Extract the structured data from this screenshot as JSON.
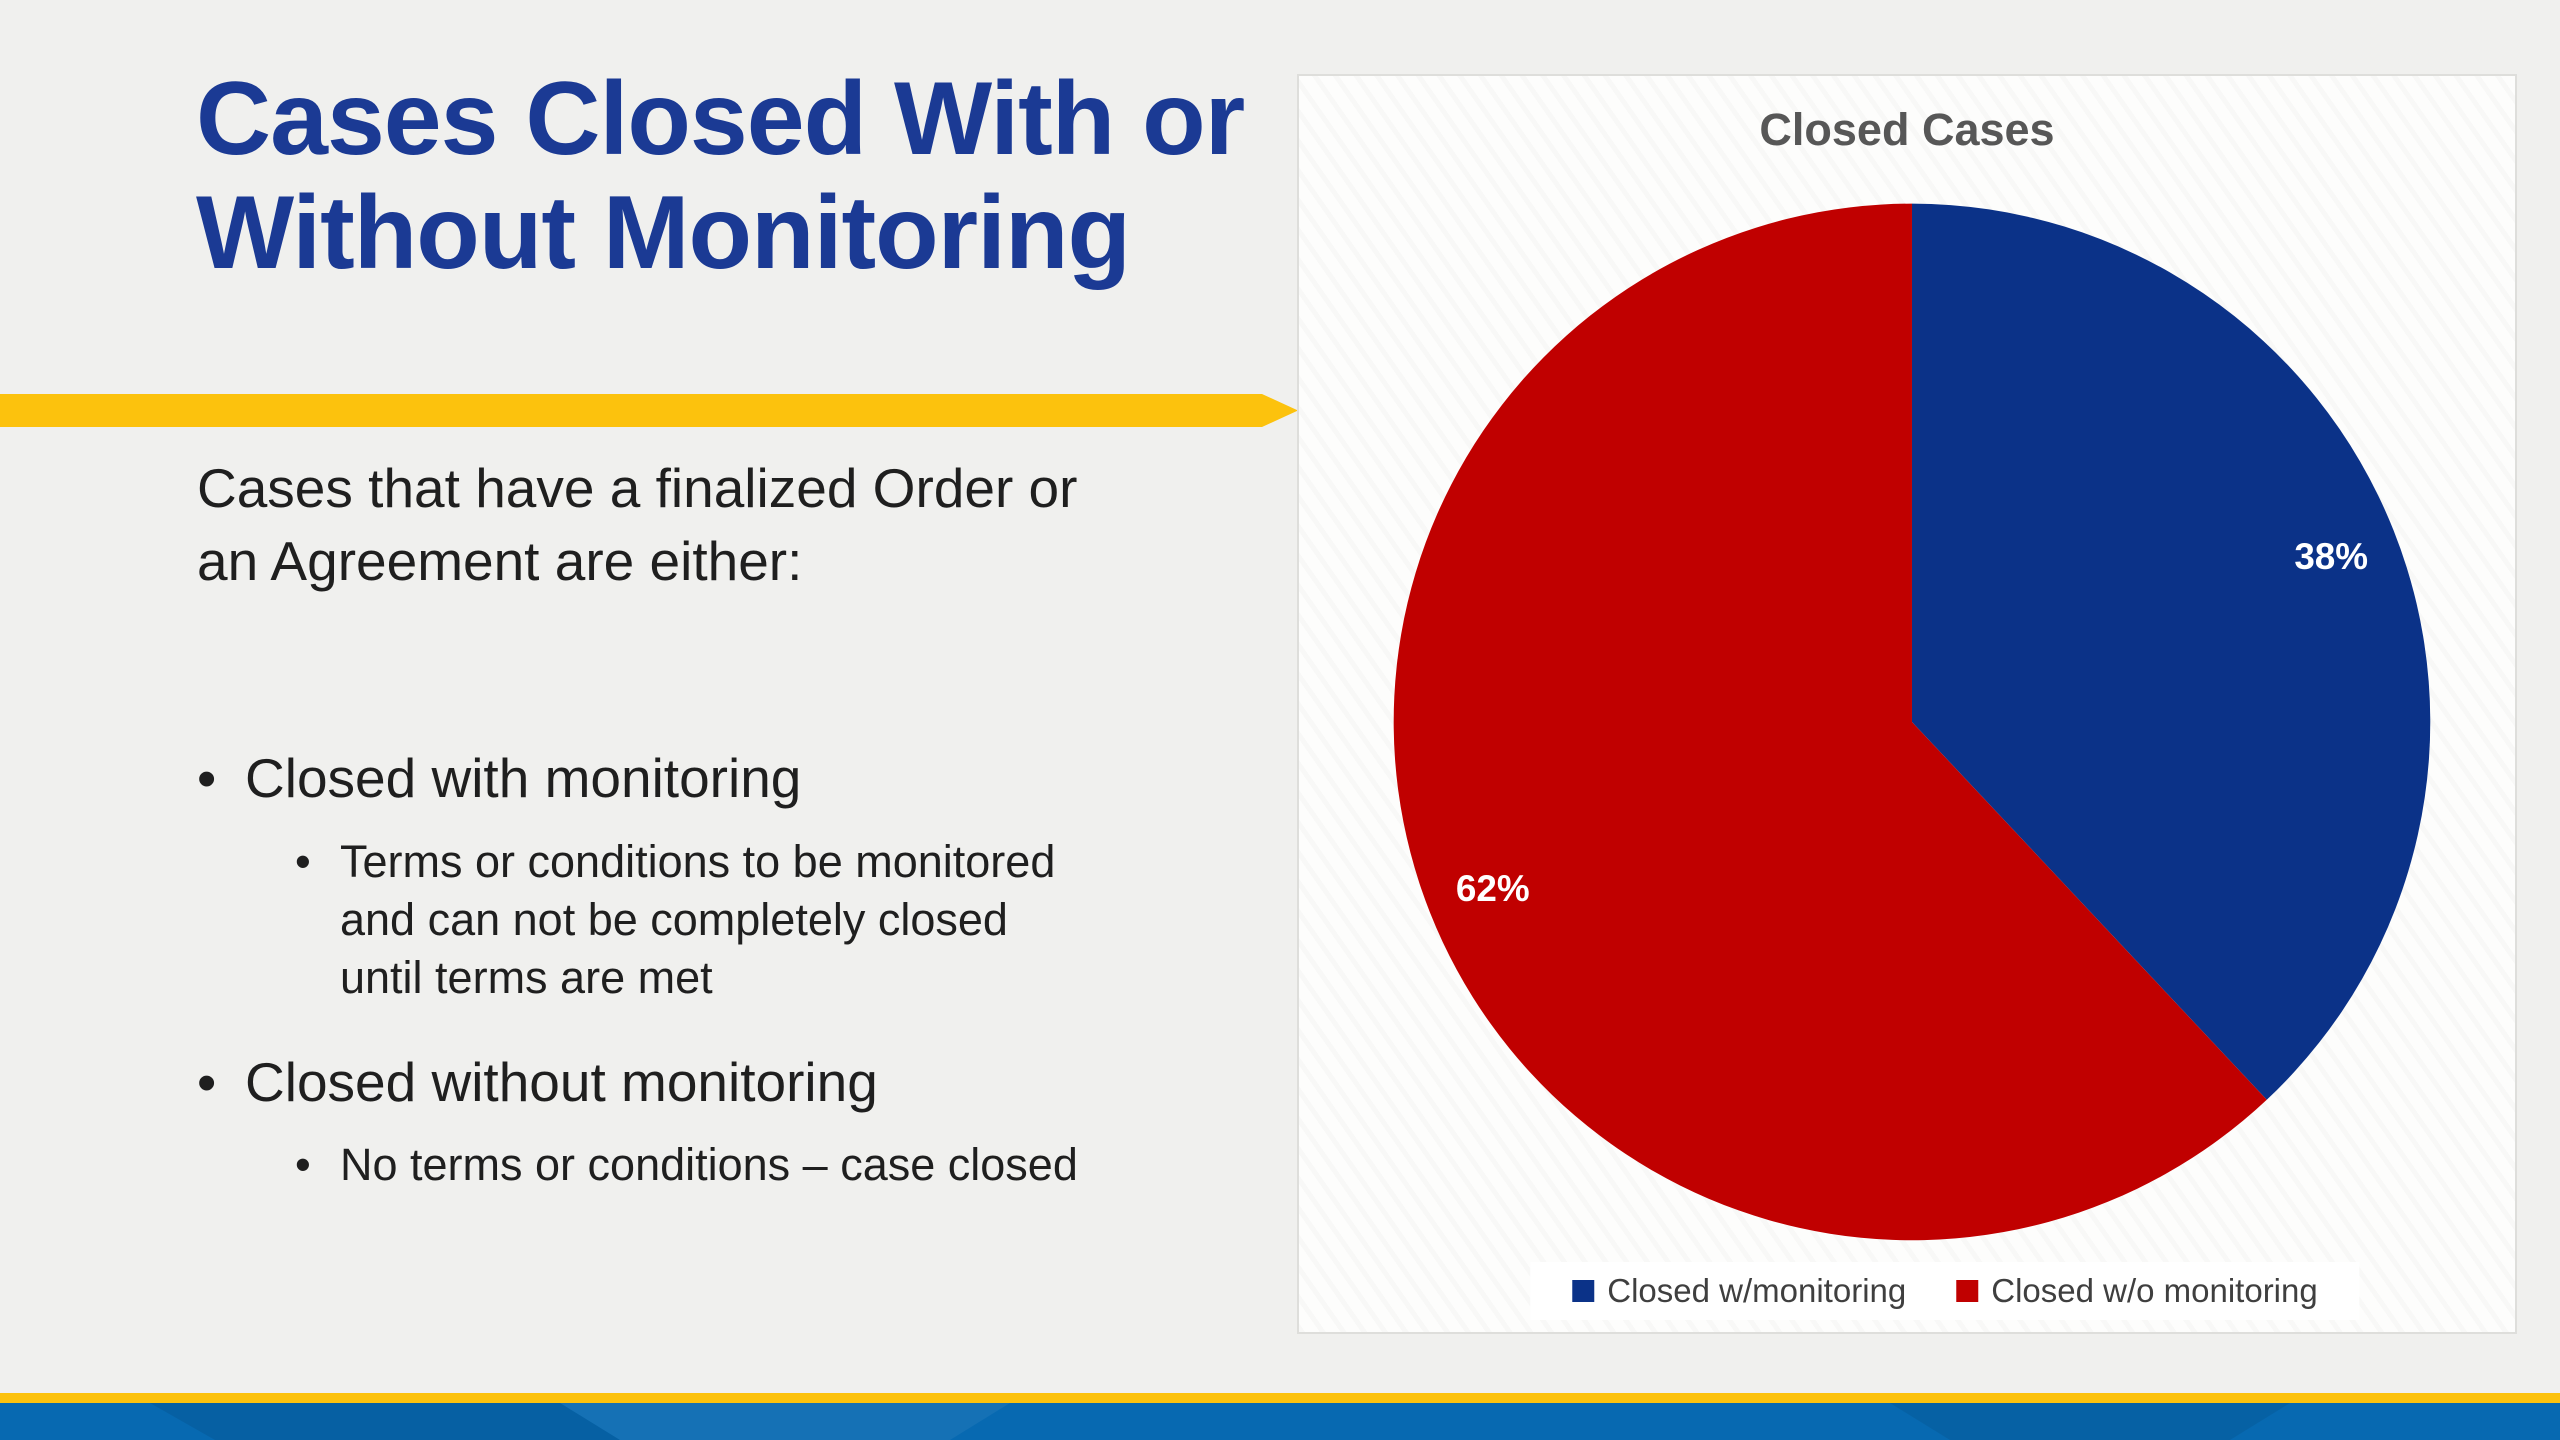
{
  "slide": {
    "title": "Cases Closed With or\nWithout Monitoring",
    "intro": "Cases that have a finalized Order or\nan Agreement are either:",
    "bullets": [
      {
        "label": "Closed with monitoring",
        "sub": "Terms or conditions to be monitored\nand can not be completely closed\nuntil terms are met"
      },
      {
        "label": "Closed without monitoring",
        "sub": "No terms or conditions – case closed"
      }
    ]
  },
  "chart_data": {
    "type": "pie",
    "title": "Closed Cases",
    "categories": [
      "Closed w/monitoring",
      "Closed w/o monitoring"
    ],
    "values": [
      38,
      62
    ],
    "labels": [
      "38%",
      "62%"
    ],
    "colors": [
      "#0B3288",
      "#C00000"
    ],
    "start_angle_deg": 0,
    "direction": "clockwise",
    "legend_position": "bottom",
    "data_label_color": "#FFFFFF"
  },
  "glyphs": {
    "bullet": "•"
  },
  "colors": {
    "page_bg": "#F0F0EE",
    "panel_bg": "#FDFDFC",
    "panel_border": "#DEDEDB",
    "title_blue": "#1B3A94",
    "text_dark": "#1F1F1F",
    "chart_title_gray": "#575757",
    "legend_text_gray": "#3F3F3F",
    "accent_yellow": "#FCC20D",
    "footer_blue": "#0769B1"
  }
}
